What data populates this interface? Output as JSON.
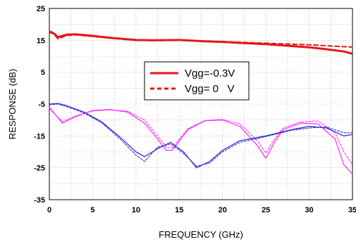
{
  "chart_data": {
    "type": "line",
    "xlabel": "FREQUENCY (GHz)",
    "ylabel": "RESPONSE (dB)",
    "xlim": [
      0,
      35
    ],
    "ylim": [
      -35,
      25
    ],
    "x_ticks": [
      0,
      5,
      10,
      15,
      20,
      25,
      30,
      35
    ],
    "y_ticks": [
      -35,
      -25,
      -15,
      -5,
      5,
      15,
      25
    ],
    "grid": true,
    "legend": {
      "position": "center",
      "entries": [
        {
          "label": "Vgg=-0.3V",
          "style": "solid",
          "color": "#e8141c"
        },
        {
          "label": "Vgg= 0   V",
          "style": "dashed",
          "color": "#e8141c"
        }
      ]
    },
    "series": [
      {
        "color": "#e8141c",
        "style": "solid",
        "width": 3,
        "x": [
          0,
          0.5,
          1,
          2,
          3,
          5,
          7,
          10,
          12,
          15,
          18,
          20,
          22,
          25,
          28,
          30,
          32,
          34,
          35
        ],
        "y": [
          17.8,
          17.2,
          16.0,
          16.8,
          16.9,
          16.4,
          15.8,
          15.1,
          15.0,
          15.1,
          14.7,
          14.5,
          14.2,
          13.8,
          13.2,
          12.8,
          12.2,
          11.5,
          10.8
        ]
      },
      {
        "color": "#e8141c",
        "style": "dashed",
        "width": 2,
        "x": [
          0,
          0.5,
          1,
          2,
          3,
          5,
          7,
          10,
          12,
          15,
          18,
          20,
          22,
          25,
          28,
          30,
          32,
          34,
          35
        ],
        "y": [
          17.5,
          17.0,
          15.5,
          16.5,
          16.7,
          16.2,
          15.7,
          15.0,
          14.9,
          15.0,
          14.7,
          14.6,
          14.4,
          14.1,
          13.8,
          13.6,
          13.3,
          13.0,
          12.9
        ]
      },
      {
        "color": "#ff33ff",
        "style": "solid",
        "width": 1.3,
        "x": [
          0,
          1.5,
          3,
          5,
          7,
          9,
          11,
          12.5,
          13.5,
          14.2,
          16,
          18,
          20,
          22,
          24,
          25,
          26,
          27,
          29,
          31,
          33,
          34,
          35
        ],
        "y": [
          -6,
          -11,
          -9,
          -7,
          -6.7,
          -7.5,
          -11,
          -16,
          -19.5,
          -19.5,
          -13,
          -10.2,
          -10,
          -12,
          -18,
          -22,
          -17,
          -13,
          -11,
          -11.2,
          -16,
          -24,
          -27
        ]
      },
      {
        "color": "#ff33ff",
        "style": "dashed",
        "width": 1.1,
        "x": [
          0,
          1.5,
          3,
          5,
          7,
          9,
          11,
          12.5,
          13.5,
          14.2,
          16,
          18,
          20,
          22,
          24,
          25,
          26,
          27,
          29,
          31,
          33,
          34,
          35
        ],
        "y": [
          -6.5,
          -10.5,
          -8.7,
          -7.2,
          -6.8,
          -7.2,
          -10,
          -15,
          -18.5,
          -18.7,
          -12.7,
          -10.1,
          -9.8,
          -11.2,
          -16.5,
          -20.3,
          -16,
          -12.5,
          -10.6,
          -10.3,
          -14,
          -20,
          -24
        ]
      },
      {
        "color": "#3333cc",
        "style": "solid",
        "width": 1.3,
        "x": [
          0,
          1,
          2,
          4,
          6,
          8,
          10,
          11,
          12.5,
          14,
          15.5,
          17,
          18.5,
          20,
          22,
          25,
          28,
          30,
          32,
          34,
          35
        ],
        "y": [
          -5,
          -4.8,
          -5.5,
          -7.5,
          -10.5,
          -15,
          -20,
          -21.5,
          -19,
          -17,
          -20,
          -25,
          -23,
          -19.5,
          -16.5,
          -15,
          -13,
          -12,
          -12.5,
          -15,
          -14.5
        ]
      },
      {
        "color": "#3333cc",
        "style": "dashed",
        "width": 1.1,
        "x": [
          0,
          1,
          2,
          4,
          6,
          8,
          10,
          11,
          12.5,
          14,
          15.5,
          17,
          18.5,
          20,
          22,
          25,
          28,
          30,
          32,
          34,
          35
        ],
        "y": [
          -5.2,
          -5,
          -5.8,
          -7.8,
          -10.8,
          -15.5,
          -21,
          -23,
          -18.5,
          -17.5,
          -20.5,
          -24.5,
          -23.5,
          -20,
          -17,
          -15.2,
          -13.2,
          -12.5,
          -12.2,
          -14,
          -14
        ]
      }
    ]
  }
}
